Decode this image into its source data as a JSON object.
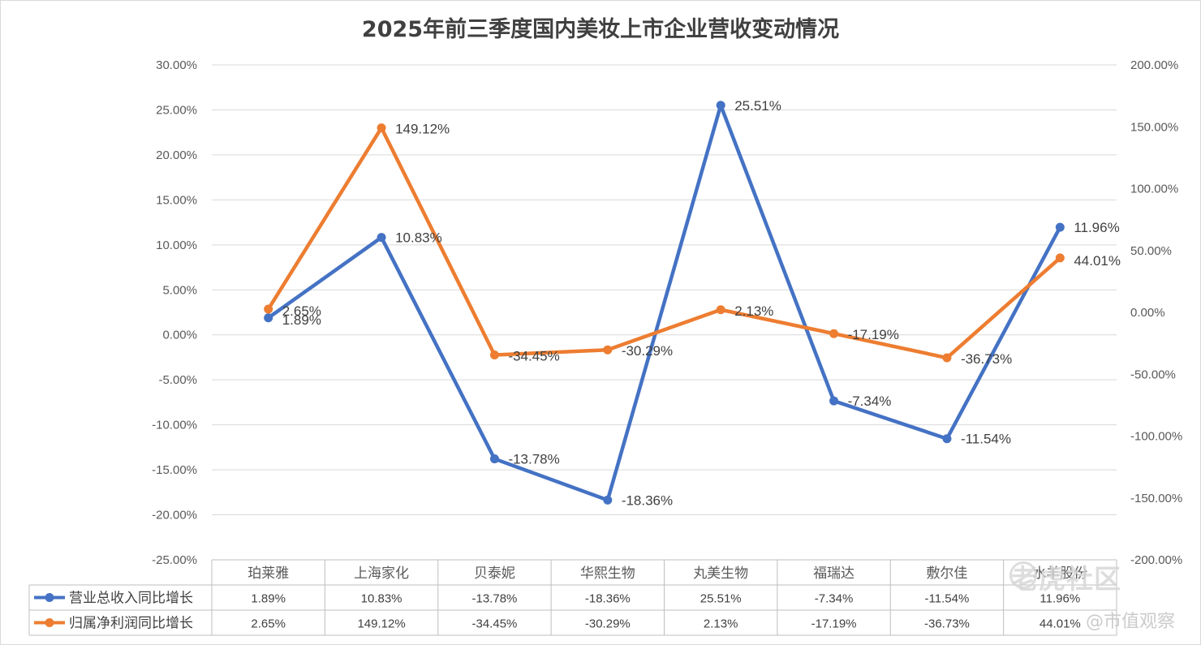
{
  "chart_data": {
    "type": "line",
    "title": "2025年前三季度国内美妆上市企业营收变动情况",
    "categories": [
      "珀莱雅",
      "上海家化",
      "贝泰妮",
      "华熙生物",
      "丸美生物",
      "福瑞达",
      "敷尔佳",
      "水羊股份"
    ],
    "y_left": {
      "min": -25,
      "max": 30,
      "step": 5,
      "tick_labels": [
        "30.00%",
        "25.00%",
        "20.00%",
        "15.00%",
        "10.00%",
        "5.00%",
        "0.00%",
        "-5.00%",
        "-10.00%",
        "-15.00%",
        "-20.00%",
        "-25.00%"
      ]
    },
    "y_right": {
      "min": -200,
      "max": 200,
      "step": 50,
      "tick_labels": [
        "200.00%",
        "150.00%",
        "100.00%",
        "50.00%",
        "0.00%",
        "-50.00%",
        "-100.00%",
        "-150.00%",
        "-200.00%"
      ]
    },
    "grid": true,
    "legend": "data-table",
    "series": [
      {
        "name": "营业总收入同比增长",
        "axis": "left",
        "color": "#4472C4",
        "values": [
          1.89,
          10.83,
          -13.78,
          -18.36,
          25.51,
          -7.34,
          -11.54,
          11.96
        ],
        "labels": [
          "1.89%",
          "10.83%",
          "-13.78%",
          "-18.36%",
          "25.51%",
          "-7.34%",
          "-11.54%",
          "11.96%"
        ]
      },
      {
        "name": "归属净利润同比增长",
        "axis": "right",
        "color": "#ED7D31",
        "values": [
          2.65,
          149.12,
          -34.45,
          -30.29,
          2.13,
          -17.19,
          -36.73,
          44.01
        ],
        "labels": [
          "2.65%",
          "149.12%",
          "-34.45%",
          "-30.29%",
          "2.13%",
          "-17.19%",
          "-36.73%",
          "44.01%"
        ]
      }
    ]
  },
  "watermark": {
    "brand": "老虎社区",
    "handle": "@市值观察"
  }
}
